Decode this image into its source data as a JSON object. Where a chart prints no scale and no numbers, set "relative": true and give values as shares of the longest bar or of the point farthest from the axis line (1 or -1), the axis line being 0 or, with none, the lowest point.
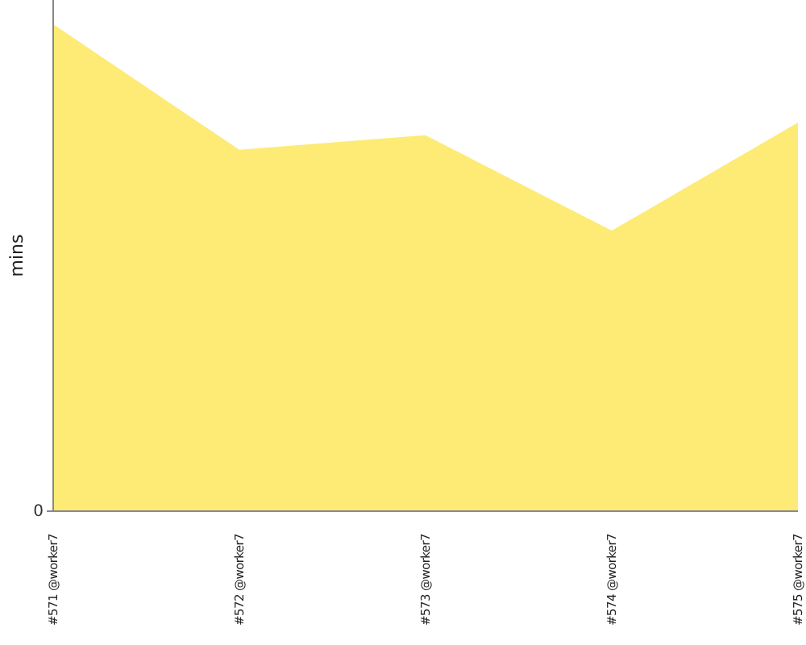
{
  "chart_data": {
    "type": "area",
    "relative": true,
    "ylabel": "mins",
    "annotations": [
      "0"
    ],
    "categories": [
      "#571 @worker7",
      "#572 @worker7",
      "#573 @worker7",
      "#574 @worker7",
      "#575 @worker7"
    ],
    "values": [
      1,
      0.742,
      0.772,
      0.576,
      0.798
    ],
    "color": "#fdeb76"
  }
}
